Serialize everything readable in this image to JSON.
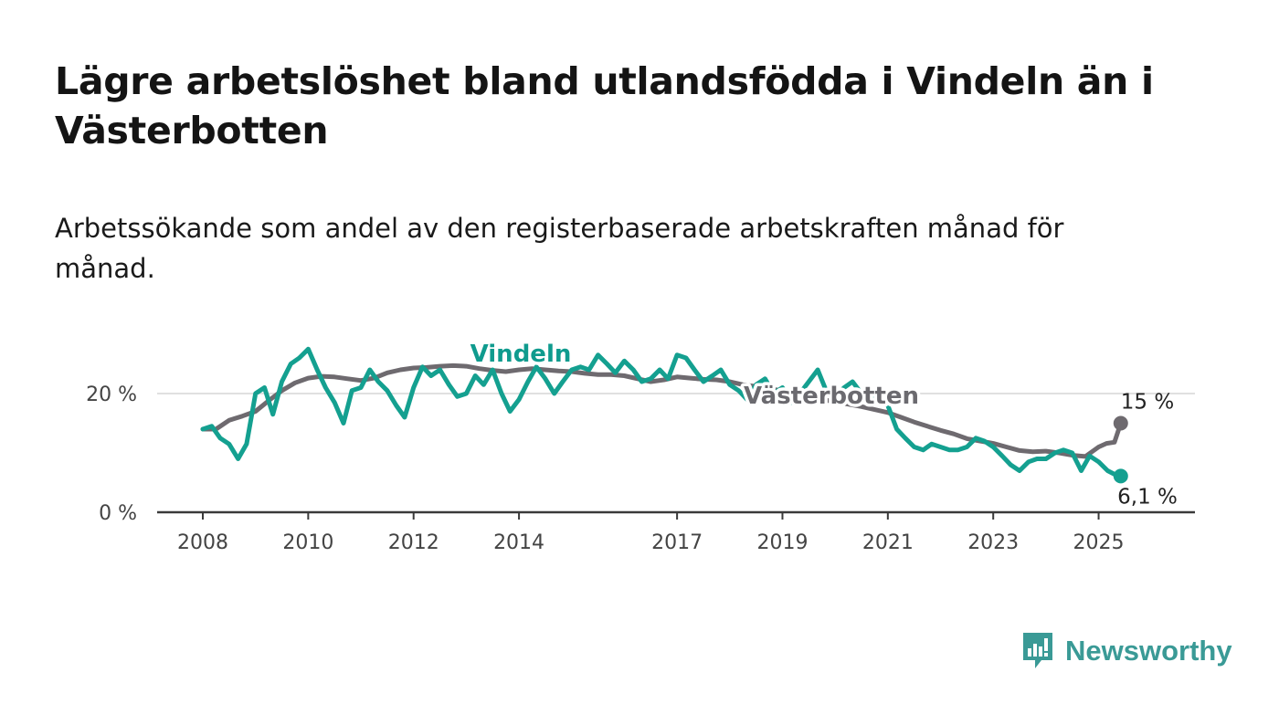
{
  "title": "Lägre arbetslöshet bland utlandsfödda i Vindeln än i Västerbotten",
  "subtitle": "Arbetssökande som andel av den registerbaserade arbetskraften månad för månad.",
  "brand": {
    "name": "Newsworthy",
    "color": "#3a9a96",
    "icon": "newsworthy-logo-icon"
  },
  "chart_data": {
    "type": "line",
    "x_unit": "year",
    "y_unit": "%",
    "ylim": [
      0,
      30
    ],
    "xlim": [
      2008,
      2026.1
    ],
    "y_ticks": [
      {
        "value": 0,
        "label": "0 %"
      },
      {
        "value": 20,
        "label": "20 %"
      }
    ],
    "x_ticks": [
      {
        "value": 2008,
        "label": "2008"
      },
      {
        "value": 2010,
        "label": "2010"
      },
      {
        "value": 2012,
        "label": "2012"
      },
      {
        "value": 2014,
        "label": "2014"
      },
      {
        "value": 2017,
        "label": "2017"
      },
      {
        "value": 2019,
        "label": "2019"
      },
      {
        "value": 2021,
        "label": "2021"
      },
      {
        "value": 2023,
        "label": "2023"
      },
      {
        "value": 2025,
        "label": "2025"
      }
    ],
    "grid": true,
    "series": [
      {
        "name": "Västerbotten",
        "color": "#6e6a6f",
        "label_color": "#6b6a6f",
        "end_label": "15 %",
        "x": [
          2008.0,
          2008.25,
          2008.5,
          2008.75,
          2009.0,
          2009.25,
          2009.5,
          2009.75,
          2010.0,
          2010.25,
          2010.5,
          2010.75,
          2011.0,
          2011.25,
          2011.5,
          2011.75,
          2012.0,
          2012.25,
          2012.5,
          2012.75,
          2013.0,
          2013.25,
          2013.5,
          2013.75,
          2014.0,
          2014.25,
          2014.5,
          2014.75,
          2015.0,
          2015.25,
          2015.5,
          2015.75,
          2016.0,
          2016.25,
          2016.5,
          2016.75,
          2017.0,
          2017.25,
          2017.5,
          2017.75,
          2018.0,
          2018.25,
          2018.5,
          2018.75,
          2019.0,
          2019.25,
          2019.5,
          2019.75,
          2020.0,
          2020.25,
          2020.5,
          2020.75,
          2021.0,
          2021.25,
          2021.5,
          2021.75,
          2022.0,
          2022.25,
          2022.5,
          2022.75,
          2023.0,
          2023.25,
          2023.5,
          2023.75,
          2024.0,
          2024.25,
          2024.5,
          2024.75,
          2025.0,
          2025.15,
          2025.3,
          2025.42
        ],
        "values": [
          14.0,
          14.0,
          15.5,
          16.2,
          17.0,
          18.8,
          20.5,
          21.8,
          22.6,
          22.9,
          22.8,
          22.5,
          22.2,
          22.6,
          23.5,
          24.0,
          24.3,
          24.4,
          24.6,
          24.7,
          24.6,
          24.2,
          23.9,
          23.7,
          24.0,
          24.2,
          24.0,
          23.8,
          23.7,
          23.4,
          23.2,
          23.2,
          23.0,
          22.5,
          22.0,
          22.3,
          22.8,
          22.6,
          22.4,
          22.3,
          22.0,
          21.5,
          21.2,
          20.8,
          20.5,
          20.0,
          19.5,
          19.0,
          18.6,
          18.2,
          17.8,
          17.3,
          16.8,
          16.0,
          15.2,
          14.5,
          13.8,
          13.2,
          12.4,
          12.0,
          11.6,
          11.0,
          10.4,
          10.2,
          10.3,
          10.0,
          9.6,
          9.4,
          11.0,
          11.6,
          11.8,
          15.0
        ]
      },
      {
        "name": "Vindeln",
        "color": "#14a090",
        "label_color": "#0f9b8e",
        "end_label": "6,1 %",
        "x": [
          2008.0,
          2008.17,
          2008.33,
          2008.5,
          2008.67,
          2008.83,
          2009.0,
          2009.17,
          2009.33,
          2009.5,
          2009.67,
          2009.83,
          2010.0,
          2010.17,
          2010.33,
          2010.5,
          2010.67,
          2010.83,
          2011.0,
          2011.17,
          2011.33,
          2011.5,
          2011.67,
          2011.83,
          2012.0,
          2012.17,
          2012.33,
          2012.5,
          2012.67,
          2012.83,
          2013.0,
          2013.17,
          2013.33,
          2013.5,
          2013.67,
          2013.83,
          2014.0,
          2014.17,
          2014.33,
          2014.5,
          2014.67,
          2014.83,
          2015.0,
          2015.17,
          2015.33,
          2015.5,
          2015.67,
          2015.83,
          2016.0,
          2016.17,
          2016.33,
          2016.5,
          2016.67,
          2016.83,
          2017.0,
          2017.17,
          2017.33,
          2017.5,
          2017.67,
          2017.83,
          2018.0,
          2018.17,
          2018.33,
          2018.5,
          2018.67,
          2018.83,
          2019.0,
          2019.17,
          2019.33,
          2019.5,
          2019.67,
          2019.83,
          2020.0,
          2020.17,
          2020.33,
          2020.5,
          2020.67,
          2020.83,
          2021.0,
          2021.17,
          2021.33,
          2021.5,
          2021.67,
          2021.83,
          2022.0,
          2022.17,
          2022.33,
          2022.5,
          2022.67,
          2022.83,
          2023.0,
          2023.17,
          2023.33,
          2023.5,
          2023.67,
          2023.83,
          2024.0,
          2024.17,
          2024.33,
          2024.5,
          2024.67,
          2024.83,
          2025.0,
          2025.17,
          2025.3,
          2025.42
        ],
        "values": [
          14.0,
          14.5,
          12.5,
          11.5,
          9.0,
          11.5,
          20.0,
          21.0,
          16.5,
          22.0,
          25.0,
          26.0,
          27.5,
          24.0,
          21.0,
          18.5,
          15.0,
          20.5,
          21.0,
          24.0,
          22.0,
          20.5,
          18.0,
          16.0,
          21.0,
          24.5,
          23.0,
          24.0,
          21.5,
          19.5,
          20.0,
          23.0,
          21.5,
          24.0,
          20.0,
          17.0,
          19.0,
          22.0,
          24.5,
          22.5,
          20.0,
          22.0,
          24.0,
          24.5,
          24.0,
          26.5,
          25.0,
          23.5,
          25.5,
          24.0,
          22.0,
          22.5,
          24.0,
          22.5,
          26.5,
          26.0,
          24.0,
          22.0,
          23.0,
          24.0,
          21.5,
          20.5,
          19.0,
          21.5,
          22.5,
          20.0,
          21.0,
          18.5,
          20.0,
          22.0,
          24.0,
          20.5,
          19.5,
          21.0,
          22.0,
          20.0,
          19.0,
          20.0,
          18.0,
          14.0,
          12.5,
          11.0,
          10.5,
          11.5,
          11.0,
          10.5,
          10.5,
          11.0,
          12.5,
          12.0,
          11.0,
          9.5,
          8.0,
          7.0,
          8.5,
          9.0,
          9.0,
          10.0,
          10.5,
          10.0,
          7.0,
          9.5,
          8.5,
          7.0,
          6.4,
          6.1
        ]
      }
    ]
  }
}
